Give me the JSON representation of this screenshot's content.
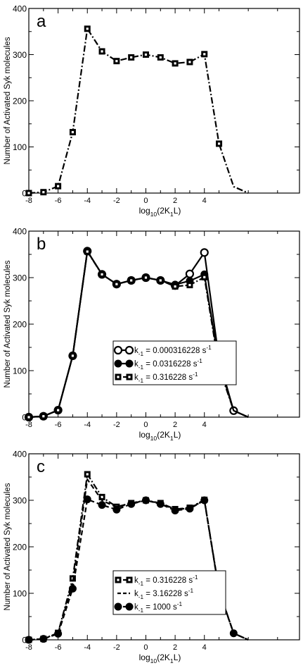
{
  "chart_data": [
    {
      "type": "line",
      "panel_label": "a",
      "xlabel_main": "log",
      "xlabel_sub": "10",
      "xlabel_rest": "(2K",
      "xlabel_sub2": "1",
      "xlabel_end": "L)",
      "ylabel": "Number of Activated Syk molecules",
      "xlim": [
        -8,
        10.5
      ],
      "ylim": [
        0,
        400
      ],
      "xticks": [
        -8,
        -6,
        -4,
        -2,
        0,
        2,
        4
      ],
      "yticks": [
        0,
        100,
        200,
        300,
        400
      ],
      "legend": null,
      "series": [
        {
          "marker": "square-dot",
          "dash": "dashdot",
          "x": [
            -8,
            -7,
            -6,
            -5,
            -4,
            -3,
            -2,
            -1,
            0,
            1,
            2,
            3,
            4,
            5,
            6,
            7
          ],
          "y": [
            0,
            2,
            15,
            132,
            356,
            307,
            286,
            294,
            300,
            294,
            281,
            284,
            301,
            107,
            14,
            0
          ],
          "markers_upto": 13
        }
      ]
    },
    {
      "type": "line",
      "panel_label": "b",
      "xlabel_main": "log",
      "xlabel_sub": "10",
      "xlabel_rest": "(2K",
      "xlabel_sub2": "1",
      "xlabel_end": "L)",
      "ylabel": "Number of Activated Syk molecules",
      "xlim": [
        -8,
        10.5
      ],
      "ylim": [
        0,
        400
      ],
      "xticks": [
        -8,
        -6,
        -4,
        -2,
        0,
        2,
        4
      ],
      "yticks": [
        0,
        100,
        200,
        300,
        400
      ],
      "legend": [
        {
          "label": "k",
          "sub": "-1",
          "rest": " = 0.000316228 s",
          "sup": "-1",
          "marker": "open-circle",
          "dash": "solid"
        },
        {
          "label": "k",
          "sub": "-1",
          "rest": " = 0.0316228 s",
          "sup": "-1",
          "marker": "filled-circle",
          "dash": "solid"
        },
        {
          "label": "k",
          "sub": "-1",
          "rest": " = 0.316228 s",
          "sup": "-1",
          "marker": "square-dot",
          "dash": "dashdot"
        }
      ],
      "series": [
        {
          "marker": "open-circle",
          "dash": "solid",
          "x": [
            -8,
            -7,
            -6,
            -5,
            -4,
            -3,
            -2,
            -1,
            0,
            1,
            2,
            3,
            4,
            5,
            6,
            7
          ],
          "y": [
            0,
            2,
            15,
            132,
            357,
            307,
            286,
            294,
            300,
            294,
            283,
            308,
            354,
            124,
            14,
            0
          ],
          "markers_upto": 14
        },
        {
          "marker": "filled-circle",
          "dash": "solid",
          "x": [
            -8,
            -7,
            -6,
            -5,
            -4,
            -3,
            -2,
            -1,
            0,
            1,
            2,
            3,
            4,
            5,
            6,
            7
          ],
          "y": [
            0,
            2,
            15,
            132,
            357,
            307,
            286,
            294,
            300,
            294,
            285,
            293,
            307,
            115,
            14,
            0
          ],
          "markers_upto": 13
        },
        {
          "marker": "square-dot",
          "dash": "dashdot",
          "x": [
            -8,
            -7,
            -6,
            -5,
            -4,
            -3,
            -2,
            -1,
            0,
            1,
            2,
            3,
            4,
            5,
            6,
            7
          ],
          "y": [
            0,
            2,
            15,
            132,
            356,
            307,
            286,
            294,
            300,
            294,
            281,
            284,
            301,
            107,
            14,
            0
          ],
          "markers_upto": 13
        }
      ]
    },
    {
      "type": "line",
      "panel_label": "c",
      "xlabel_main": "log",
      "xlabel_sub": "10",
      "xlabel_rest": "(2K",
      "xlabel_sub2": "1",
      "xlabel_end": "L)",
      "ylabel": "Number of Activated Syk molecules",
      "xlim": [
        -8,
        10.5
      ],
      "ylim": [
        0,
        400
      ],
      "xticks": [
        -8,
        -6,
        -4,
        -2,
        0,
        2,
        4
      ],
      "yticks": [
        0,
        100,
        200,
        300,
        400
      ],
      "legend": [
        {
          "label": "k",
          "sub": "-1",
          "rest": " = 0.316228 s",
          "sup": "-1",
          "marker": "square-dot",
          "dash": "dashdot"
        },
        {
          "label": "k",
          "sub": "-1",
          "rest": " = 3.16228 s",
          "sup": "-1",
          "marker": "none",
          "dash": "dashed"
        },
        {
          "label": "k",
          "sub": "-1",
          "rest": " = 1000 s",
          "sup": "-1",
          "marker": "filled-circle",
          "dash": "dashed"
        }
      ],
      "series": [
        {
          "marker": "square-dot",
          "dash": "dashdot",
          "x": [
            -8,
            -7,
            -6,
            -5,
            -4,
            -3,
            -2,
            -1,
            0,
            1,
            2,
            3,
            4,
            5,
            6,
            7
          ],
          "y": [
            0,
            2,
            15,
            132,
            356,
            307,
            286,
            294,
            300,
            294,
            281,
            284,
            301,
            107,
            14,
            0
          ],
          "markers_upto": 13
        },
        {
          "marker": "none",
          "dash": "dashed",
          "x": [
            -8,
            -7,
            -6,
            -5,
            -4,
            -3,
            -2,
            -1,
            0,
            1,
            2,
            3,
            4,
            5,
            6,
            7
          ],
          "y": [
            0,
            2,
            14,
            122,
            345,
            300,
            285,
            293,
            300,
            293,
            280,
            283,
            300,
            105,
            14,
            0
          ],
          "markers_upto": 0
        },
        {
          "marker": "filled-circle",
          "dash": "dashed",
          "x": [
            -8,
            -7,
            -6,
            -5,
            -4,
            -3,
            -2,
            -1,
            0,
            1,
            2,
            3,
            4,
            5,
            6,
            7
          ],
          "y": [
            0,
            2,
            13,
            110,
            302,
            290,
            280,
            292,
            300,
            292,
            278,
            282,
            300,
            105,
            14,
            0
          ],
          "markers_upto": 14
        }
      ]
    }
  ]
}
